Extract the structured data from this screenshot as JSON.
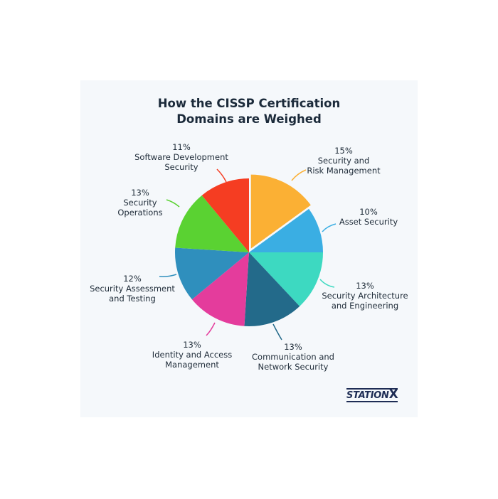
{
  "chart_data": {
    "type": "pie",
    "title": "How the CISSP Certification Domains are Weighed",
    "title_lines": [
      "How the CISSP Certification",
      "Domains are Weighed"
    ],
    "slices": [
      {
        "label": "Security and Risk Management",
        "lines": [
          "15%",
          "Security and",
          "Risk Management"
        ],
        "value": 15,
        "color": "#fbb034",
        "exploded": true
      },
      {
        "label": "Asset Security",
        "lines": [
          "10%",
          "Asset Security"
        ],
        "value": 10,
        "color": "#3aaee3"
      },
      {
        "label": "Security Architecture and Engineering",
        "lines": [
          "13%",
          "Security Architecture",
          "and Engineering"
        ],
        "value": 13,
        "color": "#3dd9c1"
      },
      {
        "label": "Communication and Network Security",
        "lines": [
          "13%",
          "Communication and",
          "Network Security"
        ],
        "value": 13,
        "color": "#236a8a"
      },
      {
        "label": "Identity and Access Management",
        "lines": [
          "13%",
          "Identity and Access",
          "Management"
        ],
        "value": 13,
        "color": "#e43c9c"
      },
      {
        "label": "Security Assessment and Testing",
        "lines": [
          "12%",
          "Security Assessment",
          "and Testing"
        ],
        "value": 12,
        "color": "#2f8fbd"
      },
      {
        "label": "Security Operations",
        "lines": [
          "13%",
          "Security",
          "Operations"
        ],
        "value": 13,
        "color": "#5ad232"
      },
      {
        "label": "Software Development Security",
        "lines": [
          "11%",
          "Software Development",
          "Security"
        ],
        "value": 11,
        "color": "#f53d22"
      }
    ],
    "legend": "none"
  },
  "logo": {
    "text": "STATIONX",
    "main": "STATION",
    "x": "X"
  }
}
